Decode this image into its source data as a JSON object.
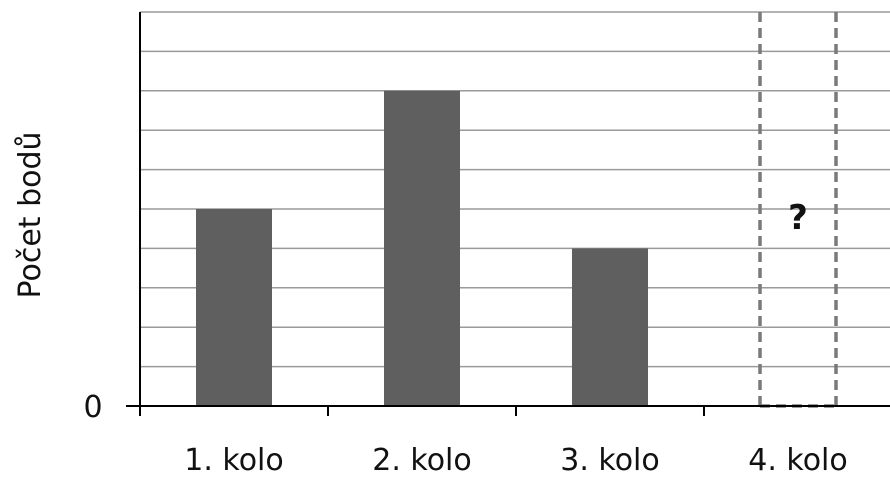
{
  "chart_data": {
    "type": "bar",
    "title": "",
    "xlabel": "",
    "ylabel": "Počet bodů",
    "y_tick_label": "0",
    "categories": [
      "1. kolo",
      "2. kolo",
      "3. kolo",
      "4. kolo"
    ],
    "values": [
      5,
      8,
      4,
      null
    ],
    "unknown_label": "?",
    "unknown_category": "4. kolo",
    "ylim": [
      0,
      10
    ],
    "grid": true,
    "bar_color": "#5f5f5f",
    "grid_color": "#9a9a9a",
    "unknown_bar_style": "dashed-outline"
  }
}
